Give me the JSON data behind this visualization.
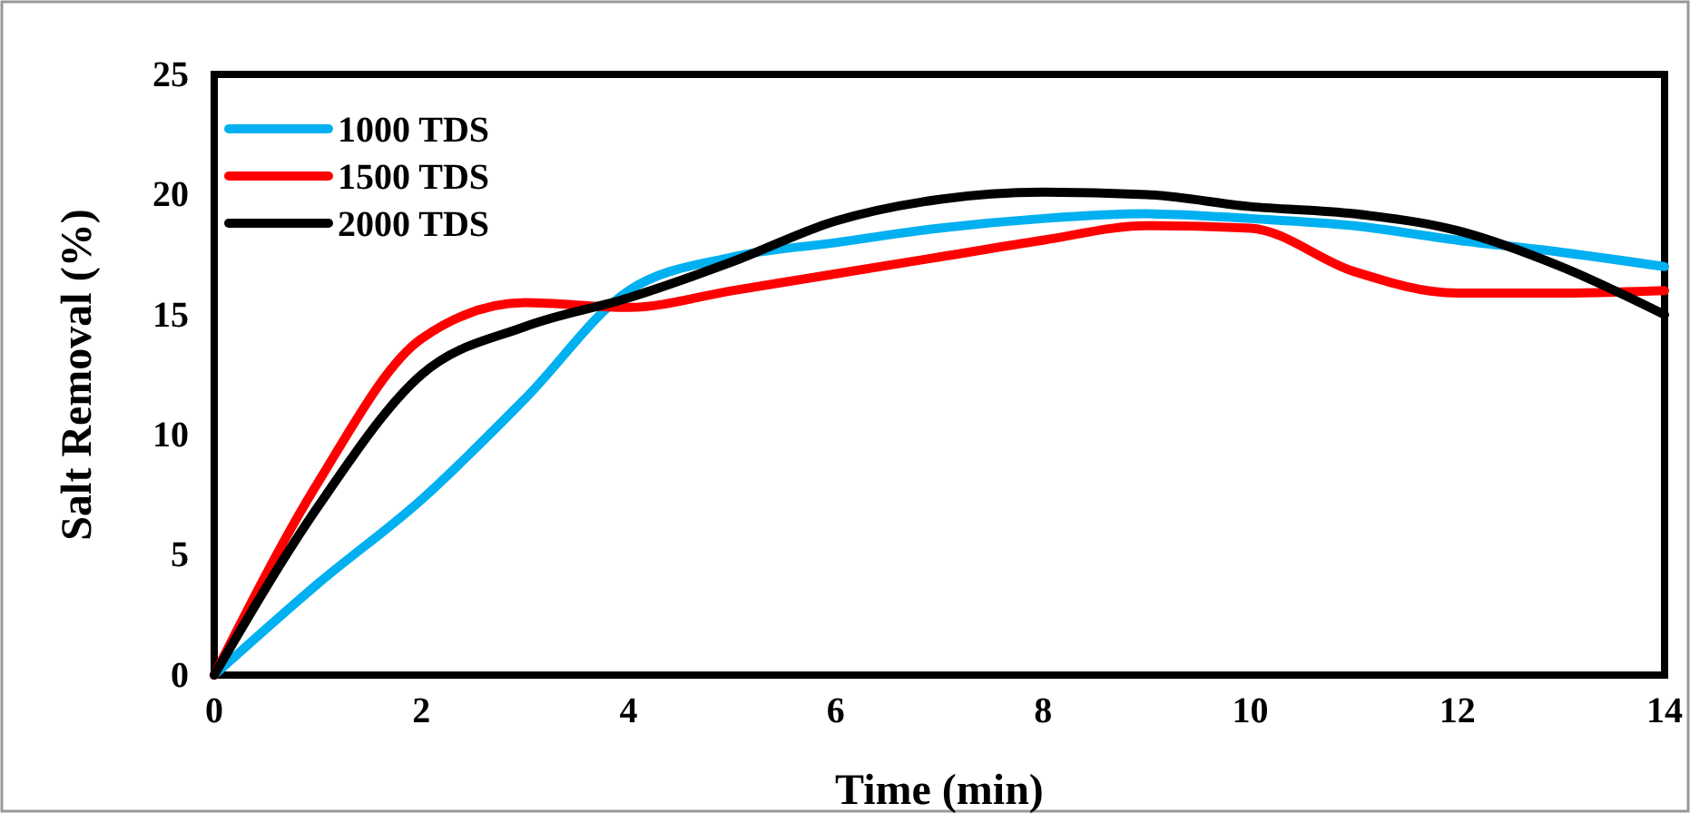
{
  "chart_data": {
    "type": "line",
    "xlabel": "Time (min)",
    "ylabel": "Salt Removal (%)",
    "x": [
      0,
      1,
      2,
      3,
      4,
      5,
      6,
      7,
      8,
      9,
      10,
      11,
      12,
      13,
      14
    ],
    "series": [
      {
        "name": "1000 TDS",
        "color": "#00b0f0",
        "values": [
          0,
          3.8,
          7.3,
          11.5,
          16,
          17.4,
          18,
          18.6,
          19,
          19.2,
          19,
          18.7,
          18.1,
          17.6,
          17
        ]
      },
      {
        "name": "1500 TDS",
        "color": "#ff0000",
        "values": [
          0,
          8,
          14,
          15.5,
          15.3,
          16,
          16.7,
          17.4,
          18.1,
          18.7,
          18.6,
          16.8,
          15.9,
          15.9,
          16
        ]
      },
      {
        "name": "2000 TDS",
        "color": "#000000",
        "values": [
          0,
          7,
          12.5,
          14.5,
          15.7,
          17.2,
          18.9,
          19.8,
          20.1,
          20,
          19.5,
          19.2,
          18.5,
          17,
          15
        ]
      }
    ],
    "xlim": [
      0,
      14
    ],
    "xticks": [
      0,
      2,
      4,
      6,
      8,
      10,
      12,
      14
    ],
    "ylim": [
      0,
      25
    ],
    "yticks": [
      0,
      5,
      10,
      15,
      20,
      25
    ],
    "grid": false,
    "legend": "top left",
    "marker": "none",
    "line_style": "solid"
  }
}
